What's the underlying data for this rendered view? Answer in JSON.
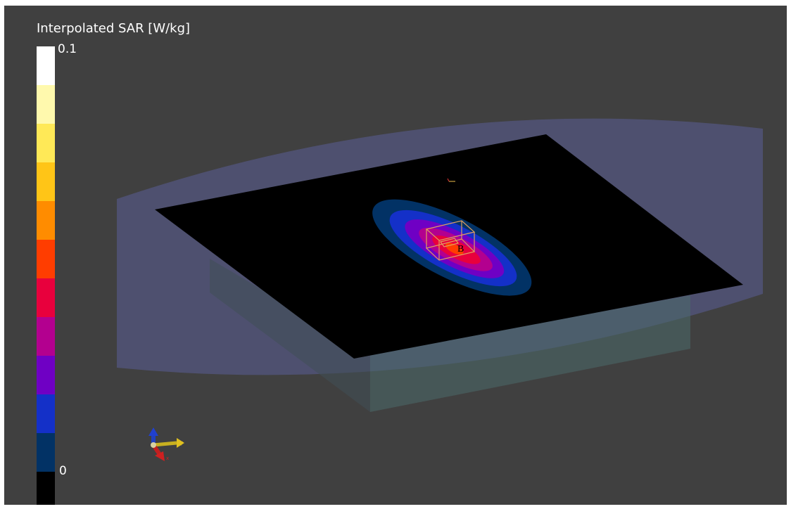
{
  "legend": {
    "title": "Interpolated SAR [W/kg]",
    "max_label": "0.1",
    "min_label": "0",
    "colors": [
      "#ffffff",
      "#fff9ad",
      "#ffe957",
      "#ffc517",
      "#ff8c00",
      "#ff3d00",
      "#e8003d",
      "#b3008f",
      "#6f00c4",
      "#1430c8",
      "#023265",
      "#000000"
    ]
  },
  "scene": {
    "probe_label": "B",
    "axes": {
      "x": "x",
      "y": "y",
      "z": "z"
    }
  }
}
